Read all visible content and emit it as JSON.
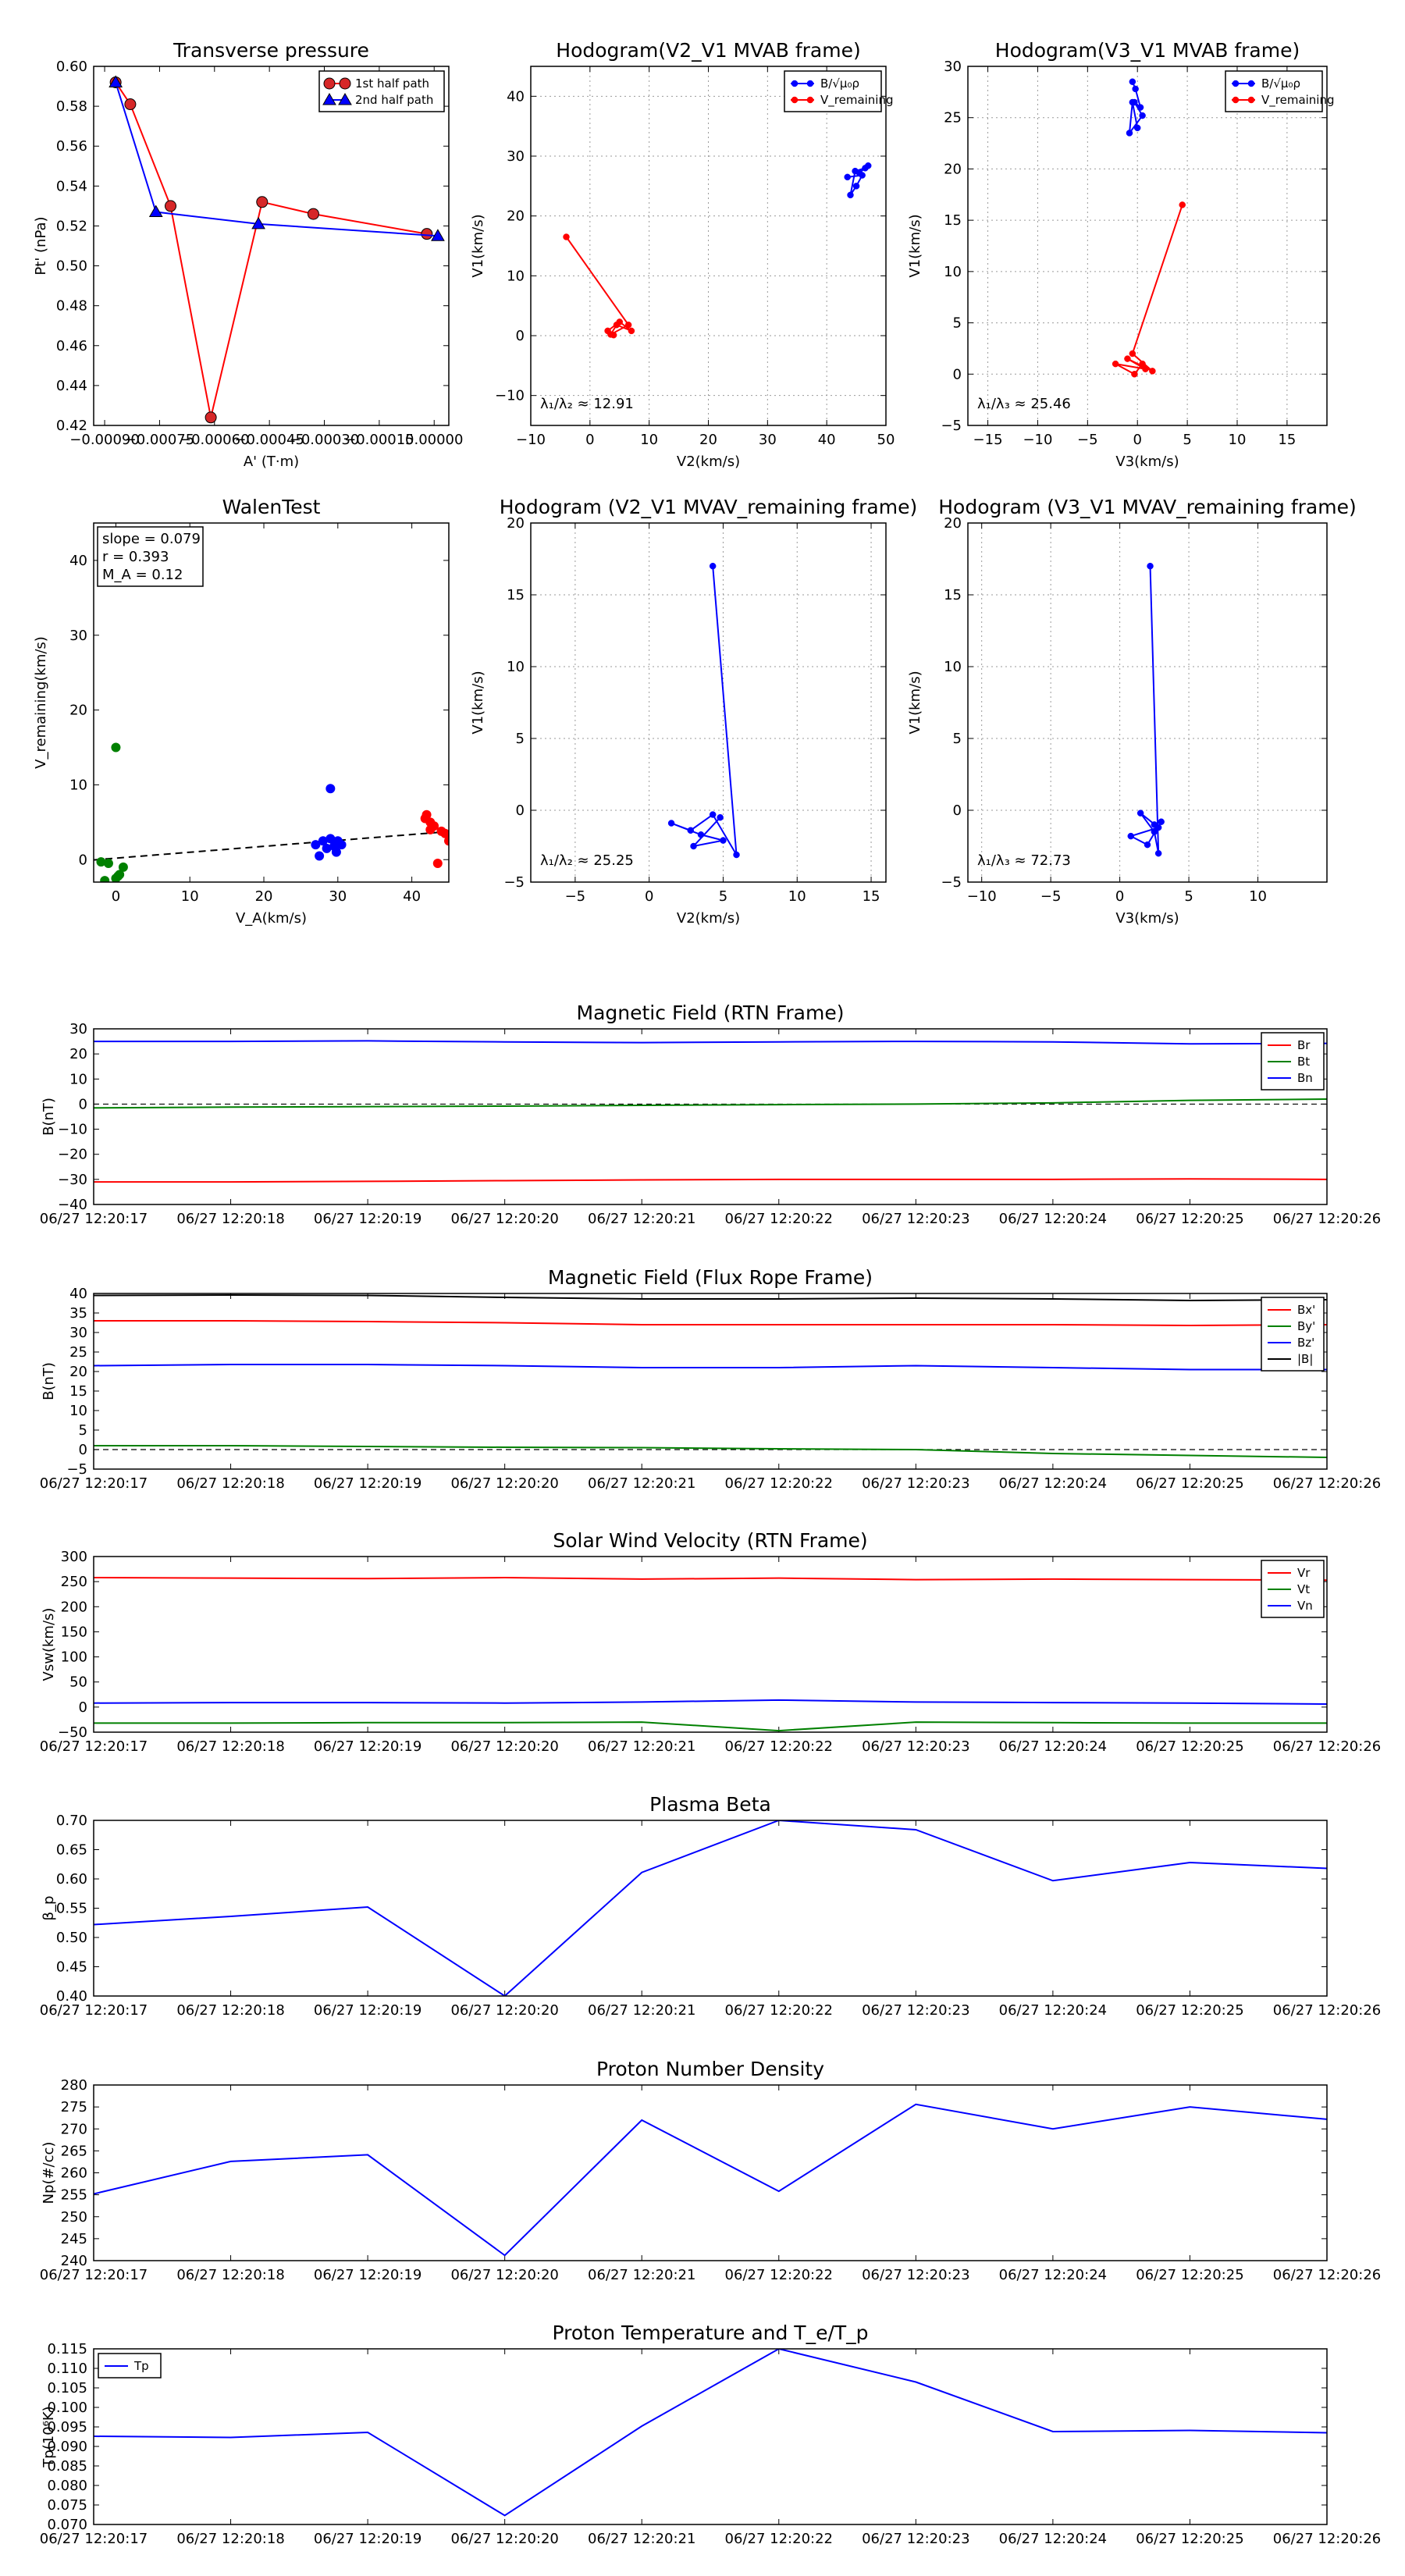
{
  "chart_data": [
    {
      "id": "transverse-pressure",
      "type": "line",
      "title": "Transverse pressure",
      "xlabel": "A' (T·m)",
      "ylabel": "Pt' (nPa)",
      "xlim": [
        -0.00093,
        4e-05
      ],
      "ylim": [
        0.42,
        0.6
      ],
      "xticks": [
        -0.0009,
        -0.00075,
        -0.0006,
        -0.00045,
        -0.0003,
        -0.00015,
        0.0
      ],
      "xtick_labels": [
        "−0.00090",
        "−0.00075",
        "−0.00060",
        "−0.00045",
        "−0.00030",
        "−0.00015",
        "0.00000"
      ],
      "yticks": [
        0.42,
        0.44,
        0.46,
        0.48,
        0.5,
        0.52,
        0.54,
        0.56,
        0.58,
        0.6
      ],
      "ytick_labels": [
        "0.42",
        "0.44",
        "0.46",
        "0.48",
        "0.50",
        "0.52",
        "0.54",
        "0.56",
        "0.58",
        "0.60"
      ],
      "grid": false,
      "legend": "top-right",
      "series": [
        {
          "name": "1st half path",
          "color": "#ff0000",
          "marker": "circle",
          "x": [
            -0.00087,
            -0.00083,
            -0.00072,
            -0.00061,
            -0.00047,
            -0.00033,
            -2e-05
          ],
          "y": [
            0.592,
            0.581,
            0.53,
            0.424,
            0.532,
            0.526,
            0.516
          ]
        },
        {
          "name": "2nd half path",
          "color": "#0000ff",
          "marker": "triangle",
          "x": [
            -0.00087,
            -0.00076,
            -0.00048,
            1e-05
          ],
          "y": [
            0.592,
            0.527,
            0.521,
            0.515
          ]
        }
      ]
    },
    {
      "id": "hodogram-v2-v1-mvab",
      "type": "scatter",
      "title": "Hodogram(V2_V1 MVAB frame)",
      "xlabel": "V2(km/s)",
      "ylabel": "V1(km/s)",
      "xlim": [
        -10,
        50
      ],
      "ylim": [
        -15,
        45
      ],
      "xticks": [
        -10,
        0,
        10,
        20,
        30,
        40,
        50
      ],
      "yticks": [
        -10,
        0,
        10,
        20,
        30,
        40
      ],
      "grid": true,
      "legend": "top-right",
      "annotation": "λ₁/λ₂ ≈ 12.91",
      "series": [
        {
          "name": "B/√μ₀ρ",
          "color": "#0000ff",
          "marker": "dot",
          "x": [
            43.5,
            46.0,
            45.0,
            44.0,
            44.8,
            46.5,
            45.5,
            47.0
          ],
          "y": [
            26.5,
            26.8,
            25.0,
            23.5,
            27.5,
            28.0,
            27.2,
            28.4
          ]
        },
        {
          "name": "V_remaining",
          "color": "#ff0000",
          "marker": "dot",
          "x": [
            -4.0,
            6.5,
            3.5,
            4.5,
            7.0,
            5.0,
            3.0,
            4.0
          ],
          "y": [
            16.5,
            1.8,
            0.2,
            1.8,
            0.8,
            2.3,
            0.8,
            0.1
          ]
        }
      ]
    },
    {
      "id": "hodogram-v3-v1-mvab",
      "type": "scatter",
      "title": "Hodogram(V3_V1 MVAB frame)",
      "xlabel": "V3(km/s)",
      "ylabel": "V1(km/s)",
      "xlim": [
        -17,
        19
      ],
      "ylim": [
        -5,
        30
      ],
      "xticks": [
        -15,
        -10,
        -5,
        0,
        5,
        10,
        15
      ],
      "yticks": [
        -5,
        0,
        5,
        10,
        15,
        20,
        25,
        30
      ],
      "grid": true,
      "legend": "top-right",
      "annotation": "λ₁/λ₃ ≈ 25.46",
      "series": [
        {
          "name": "B/√μ₀ρ",
          "color": "#0000ff",
          "marker": "dot",
          "x": [
            -0.5,
            -0.2,
            0.3,
            -0.3,
            0.5,
            -0.8,
            -0.5,
            0.0
          ],
          "y": [
            28.5,
            27.8,
            26.0,
            26.5,
            25.2,
            23.5,
            26.5,
            24.0
          ]
        },
        {
          "name": "V_remaining",
          "color": "#ff0000",
          "marker": "dot",
          "x": [
            4.5,
            -0.5,
            1.5,
            -1.0,
            0.8,
            -2.2,
            -0.3,
            0.5
          ],
          "y": [
            16.5,
            2.0,
            0.3,
            1.5,
            0.5,
            1.0,
            0.0,
            1.0
          ]
        }
      ]
    },
    {
      "id": "walen-test",
      "type": "scatter",
      "title": "WalenTest",
      "xlabel": "V_A(km/s)",
      "ylabel": "V_remaining(km/s)",
      "xlim": [
        -3,
        45
      ],
      "ylim": [
        -3,
        45
      ],
      "xticks": [
        0,
        10,
        20,
        30,
        40
      ],
      "yticks": [
        0,
        10,
        20,
        30,
        40
      ],
      "grid": false,
      "info": {
        "slope": "slope = 0.079",
        "r": "r = 0.393",
        "ma": "M_A = 0.12"
      },
      "fit_line": {
        "slope": 0.079,
        "intercept": 0.2,
        "x_range": [
          -3,
          45
        ]
      },
      "groups": [
        {
          "color": "#008000",
          "x": [
            0.0,
            -1.0,
            1.0,
            0.5,
            0.0,
            -2.0,
            -1.5,
            0.3
          ],
          "y": [
            15.0,
            -0.5,
            -1.0,
            -2.0,
            -2.5,
            -0.3,
            -2.8,
            -2.2
          ]
        },
        {
          "color": "#0000ff",
          "x": [
            29.0,
            27.0,
            28.0,
            29.5,
            30.0,
            28.5,
            29.0,
            27.5,
            30.5,
            29.8
          ],
          "y": [
            9.5,
            2.0,
            2.5,
            1.8,
            2.5,
            1.5,
            2.8,
            0.5,
            2.0,
            1.0
          ]
        },
        {
          "color": "#ff0000",
          "x": [
            42.0,
            42.5,
            43.0,
            42.5,
            44.0,
            44.5,
            45.0,
            43.5,
            41.8
          ],
          "y": [
            6.0,
            5.0,
            4.5,
            4.0,
            3.8,
            3.5,
            2.5,
            -0.5,
            5.5
          ]
        }
      ]
    },
    {
      "id": "hodogram-v2-v1-mvav",
      "type": "line",
      "title": "Hodogram (V2_V1 MVAV_remaining frame)",
      "xlabel": "V2(km/s)",
      "ylabel": "V1(km/s)",
      "xlim": [
        -8,
        16
      ],
      "ylim": [
        -5,
        20
      ],
      "xticks": [
        -5,
        0,
        5,
        10,
        15
      ],
      "yticks": [
        -5,
        0,
        5,
        10,
        15,
        20
      ],
      "grid": true,
      "annotation": "λ₁/λ₂ ≈ 25.25",
      "series": [
        {
          "name": "V",
          "color": "#0000ff",
          "marker": "dot",
          "x": [
            4.3,
            5.9,
            4.3,
            2.8,
            1.5,
            3.5,
            5.0,
            3.0,
            4.8
          ],
          "y": [
            17.0,
            -3.1,
            -0.3,
            -1.4,
            -0.9,
            -1.7,
            -2.1,
            -2.5,
            -0.5
          ]
        }
      ]
    },
    {
      "id": "hodogram-v3-v1-mvav",
      "type": "line",
      "title": "Hodogram (V3_V1 MVAV_remaining frame)",
      "xlabel": "V3(km/s)",
      "ylabel": "V1(km/s)",
      "xlim": [
        -11,
        15
      ],
      "ylim": [
        -5,
        20
      ],
      "xticks": [
        -10,
        -5,
        0,
        5,
        10
      ],
      "yticks": [
        -5,
        0,
        5,
        10,
        15,
        20
      ],
      "grid": true,
      "annotation": "λ₁/λ₃ ≈ 72.73",
      "series": [
        {
          "name": "V",
          "color": "#0000ff",
          "marker": "dot",
          "x": [
            2.2,
            2.8,
            2.5,
            1.5,
            2.8,
            0.8,
            2.0,
            3.0,
            2.5
          ],
          "y": [
            17.0,
            -3.0,
            -1.5,
            -0.2,
            -1.2,
            -1.8,
            -2.4,
            -0.8,
            -1.0
          ]
        }
      ]
    },
    {
      "id": "magnetic-field-rtn",
      "type": "line",
      "title": "Magnetic Field (RTN Frame)",
      "xlabel": "",
      "ylabel": "B(nT)",
      "xlim": [
        0,
        9
      ],
      "ylim": [
        -40,
        30
      ],
      "yticks": [
        -40,
        -30,
        -20,
        -10,
        0,
        10,
        20,
        30
      ],
      "categories": [
        "06/27 12:20:17",
        "06/27 12:20:18",
        "06/27 12:20:19",
        "06/27 12:20:20",
        "06/27 12:20:21",
        "06/27 12:20:22",
        "06/27 12:20:23",
        "06/27 12:20:24",
        "06/27 12:20:25",
        "06/27 12:20:26"
      ],
      "zero_line": true,
      "legend": "right",
      "series": [
        {
          "name": "Br",
          "color": "#ff0000",
          "x": [
            0,
            1,
            2,
            3,
            4,
            5,
            6,
            7,
            8,
            9
          ],
          "values": [
            -31.0,
            -31.0,
            -30.8,
            -30.5,
            -30.2,
            -30.0,
            -30.0,
            -30.0,
            -29.8,
            -30.0
          ]
        },
        {
          "name": "Bt",
          "color": "#008000",
          "x": [
            0,
            1,
            2,
            3,
            4,
            5,
            6,
            7,
            8,
            9
          ],
          "values": [
            -1.5,
            -1.2,
            -1.0,
            -0.8,
            -0.5,
            -0.2,
            0.0,
            0.5,
            1.5,
            2.0
          ]
        },
        {
          "name": "Bn",
          "color": "#0000ff",
          "x": [
            0,
            1,
            2,
            3,
            4,
            5,
            6,
            7,
            8,
            9
          ],
          "values": [
            25.0,
            25.0,
            25.2,
            24.8,
            24.5,
            24.8,
            25.0,
            24.8,
            24.0,
            24.2
          ]
        }
      ]
    },
    {
      "id": "magnetic-field-flux-rope",
      "type": "line",
      "title": "Magnetic Field (Flux Rope Frame)",
      "xlabel": "",
      "ylabel": "B(nT)",
      "xlim": [
        0,
        9
      ],
      "ylim": [
        -5,
        40
      ],
      "yticks": [
        -5,
        0,
        5,
        10,
        15,
        20,
        25,
        30,
        35,
        40
      ],
      "categories": [
        "06/27 12:20:17",
        "06/27 12:20:18",
        "06/27 12:20:19",
        "06/27 12:20:20",
        "06/27 12:20:21",
        "06/27 12:20:22",
        "06/27 12:20:23",
        "06/27 12:20:24",
        "06/27 12:20:25",
        "06/27 12:20:26"
      ],
      "zero_line": true,
      "legend": "right",
      "series": [
        {
          "name": "Bx'",
          "color": "#ff0000",
          "x": [
            0,
            1,
            2,
            3,
            4,
            5,
            6,
            7,
            8,
            9
          ],
          "values": [
            33.0,
            33.0,
            32.8,
            32.5,
            32.0,
            32.0,
            32.0,
            32.0,
            31.8,
            32.0
          ]
        },
        {
          "name": "By'",
          "color": "#008000",
          "x": [
            0,
            1,
            2,
            3,
            4,
            5,
            6,
            7,
            8,
            9
          ],
          "values": [
            1.0,
            1.0,
            0.8,
            0.6,
            0.5,
            0.2,
            0.0,
            -1.0,
            -1.5,
            -2.0
          ]
        },
        {
          "name": "Bz'",
          "color": "#0000ff",
          "x": [
            0,
            1,
            2,
            3,
            4,
            5,
            6,
            7,
            8,
            9
          ],
          "values": [
            21.5,
            21.8,
            21.8,
            21.5,
            21.0,
            21.0,
            21.5,
            21.0,
            20.5,
            20.5
          ]
        },
        {
          "name": "|B|",
          "color": "#000000",
          "x": [
            0,
            1,
            2,
            3,
            4,
            5,
            6,
            7,
            8,
            9
          ],
          "values": [
            39.5,
            39.6,
            39.5,
            39.0,
            38.6,
            38.6,
            38.8,
            38.6,
            38.2,
            38.4
          ]
        }
      ]
    },
    {
      "id": "solar-wind-velocity",
      "type": "line",
      "title": "Solar Wind Velocity (RTN Frame)",
      "xlabel": "",
      "ylabel": "Vsw(km/s)",
      "xlim": [
        0,
        9
      ],
      "ylim": [
        -50,
        300
      ],
      "yticks": [
        -50,
        0,
        50,
        100,
        150,
        200,
        250,
        300
      ],
      "categories": [
        "06/27 12:20:17",
        "06/27 12:20:18",
        "06/27 12:20:19",
        "06/27 12:20:20",
        "06/27 12:20:21",
        "06/27 12:20:22",
        "06/27 12:20:23",
        "06/27 12:20:24",
        "06/27 12:20:25",
        "06/27 12:20:26"
      ],
      "legend": "right",
      "series": [
        {
          "name": "Vr",
          "color": "#ff0000",
          "x": [
            0,
            1,
            2,
            3,
            4,
            5,
            6,
            7,
            8,
            9
          ],
          "values": [
            258,
            257,
            256,
            258,
            255,
            257,
            254,
            255,
            254,
            253
          ]
        },
        {
          "name": "Vt",
          "color": "#008000",
          "x": [
            0,
            1,
            2,
            3,
            4,
            5,
            6,
            7,
            8,
            9
          ],
          "values": [
            -32,
            -32,
            -31,
            -31,
            -30,
            -47,
            -30,
            -31,
            -32,
            -32
          ]
        },
        {
          "name": "Vn",
          "color": "#0000ff",
          "x": [
            0,
            1,
            2,
            3,
            4,
            5,
            6,
            7,
            8,
            9
          ],
          "values": [
            8,
            9,
            9,
            8,
            10,
            14,
            10,
            9,
            8,
            6
          ]
        }
      ]
    },
    {
      "id": "plasma-beta",
      "type": "line",
      "title": "Plasma Beta",
      "xlabel": "",
      "ylabel": "β_p",
      "xlim": [
        0,
        9
      ],
      "ylim": [
        0.4,
        0.7
      ],
      "yticks": [
        0.4,
        0.45,
        0.5,
        0.55,
        0.6,
        0.65,
        0.7
      ],
      "ytick_labels": [
        "0.40",
        "0.45",
        "0.50",
        "0.55",
        "0.60",
        "0.65",
        "0.70"
      ],
      "categories": [
        "06/27 12:20:17",
        "06/27 12:20:18",
        "06/27 12:20:19",
        "06/27 12:20:20",
        "06/27 12:20:21",
        "06/27 12:20:22",
        "06/27 12:20:23",
        "06/27 12:20:24",
        "06/27 12:20:25",
        "06/27 12:20:26"
      ],
      "series": [
        {
          "name": "beta",
          "color": "#0000ff",
          "x": [
            0,
            1,
            2,
            3,
            4,
            5,
            6,
            7,
            8,
            9
          ],
          "values": [
            0.522,
            0.536,
            0.552,
            0.4,
            0.611,
            0.7,
            0.684,
            0.597,
            0.628,
            0.618
          ]
        }
      ]
    },
    {
      "id": "proton-number-density",
      "type": "line",
      "title": "Proton Number Density",
      "xlabel": "",
      "ylabel": "Np(#/cc)",
      "xlim": [
        0,
        9
      ],
      "ylim": [
        240,
        280
      ],
      "yticks": [
        240,
        245,
        250,
        255,
        260,
        265,
        270,
        275,
        280
      ],
      "categories": [
        "06/27 12:20:17",
        "06/27 12:20:18",
        "06/27 12:20:19",
        "06/27 12:20:20",
        "06/27 12:20:21",
        "06/27 12:20:22",
        "06/27 12:20:23",
        "06/27 12:20:24",
        "06/27 12:20:25",
        "06/27 12:20:26"
      ],
      "series": [
        {
          "name": "Np",
          "color": "#0000ff",
          "x": [
            0,
            1,
            2,
            3,
            4,
            5,
            6,
            7,
            8,
            9
          ],
          "values": [
            255.2,
            262.6,
            264.1,
            241.2,
            272.0,
            255.8,
            275.6,
            270.0,
            275.0,
            272.2
          ]
        }
      ]
    },
    {
      "id": "proton-temperature",
      "type": "line",
      "title": "Proton Temperature and T_e/T_p",
      "xlabel": "",
      "ylabel": "Tp(10⁶K)",
      "xlim": [
        0,
        9
      ],
      "ylim": [
        0.07,
        0.115
      ],
      "yticks": [
        0.07,
        0.075,
        0.08,
        0.085,
        0.09,
        0.095,
        0.1,
        0.105,
        0.11,
        0.115
      ],
      "ytick_labels": [
        "0.070",
        "0.075",
        "0.080",
        "0.085",
        "0.090",
        "0.095",
        "0.100",
        "0.105",
        "0.110",
        "0.115"
      ],
      "categories": [
        "06/27 12:20:17",
        "06/27 12:20:18",
        "06/27 12:20:19",
        "06/27 12:20:20",
        "06/27 12:20:21",
        "06/27 12:20:22",
        "06/27 12:20:23",
        "06/27 12:20:24",
        "06/27 12:20:25",
        "06/27 12:20:26"
      ],
      "legend": "top-left",
      "series": [
        {
          "name": "Tp",
          "color": "#0000ff",
          "x": [
            0,
            1,
            2,
            3,
            4,
            5,
            6,
            7,
            8,
            9
          ],
          "values": [
            0.0926,
            0.0923,
            0.0936,
            0.0723,
            0.0952,
            0.115,
            0.1065,
            0.0938,
            0.0941,
            0.0935
          ]
        }
      ]
    }
  ]
}
